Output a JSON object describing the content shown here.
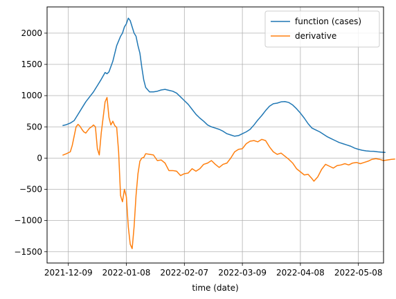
{
  "chart_data": {
    "type": "line",
    "title": "",
    "xlabel": "time (date)",
    "ylabel": "",
    "grid": true,
    "legend_position": "top-right",
    "x_axis": {
      "kind": "date",
      "min": "2021-11-28",
      "max": "2022-05-21",
      "ticks": [
        "2021-12-09",
        "2022-01-08",
        "2022-02-07",
        "2022-03-09",
        "2022-04-08",
        "2022-05-08"
      ]
    },
    "y_axis": {
      "min": -1680,
      "max": 2420,
      "ticks": [
        -1500,
        -1000,
        -500,
        0,
        500,
        1000,
        1500,
        2000
      ]
    },
    "series": [
      {
        "name": "function (cases)",
        "color": "#1f77b4",
        "points": [
          [
            "2021-12-06",
            520
          ],
          [
            "2021-12-08",
            535
          ],
          [
            "2021-12-10",
            560
          ],
          [
            "2021-12-12",
            600
          ],
          [
            "2021-12-14",
            700
          ],
          [
            "2021-12-16",
            800
          ],
          [
            "2021-12-18",
            900
          ],
          [
            "2021-12-20",
            980
          ],
          [
            "2021-12-22",
            1060
          ],
          [
            "2021-12-24",
            1160
          ],
          [
            "2021-12-26",
            1260
          ],
          [
            "2021-12-28",
            1370
          ],
          [
            "2021-12-29",
            1350
          ],
          [
            "2021-12-30",
            1380
          ],
          [
            "2022-01-01",
            1550
          ],
          [
            "2022-01-03",
            1800
          ],
          [
            "2022-01-05",
            1950
          ],
          [
            "2022-01-06",
            2000
          ],
          [
            "2022-01-07",
            2100
          ],
          [
            "2022-01-08",
            2150
          ],
          [
            "2022-01-09",
            2240
          ],
          [
            "2022-01-10",
            2200
          ],
          [
            "2022-01-11",
            2100
          ],
          [
            "2022-01-12",
            2000
          ],
          [
            "2022-01-13",
            1950
          ],
          [
            "2022-01-14",
            1800
          ],
          [
            "2022-01-15",
            1680
          ],
          [
            "2022-01-16",
            1450
          ],
          [
            "2022-01-17",
            1250
          ],
          [
            "2022-01-18",
            1130
          ],
          [
            "2022-01-20",
            1060
          ],
          [
            "2022-01-22",
            1060
          ],
          [
            "2022-01-24",
            1070
          ],
          [
            "2022-01-26",
            1090
          ],
          [
            "2022-01-28",
            1100
          ],
          [
            "2022-01-30",
            1085
          ],
          [
            "2022-02-01",
            1070
          ],
          [
            "2022-02-03",
            1040
          ],
          [
            "2022-02-05",
            980
          ],
          [
            "2022-02-07",
            920
          ],
          [
            "2022-02-09",
            860
          ],
          [
            "2022-02-11",
            780
          ],
          [
            "2022-02-13",
            700
          ],
          [
            "2022-02-15",
            640
          ],
          [
            "2022-02-17",
            590
          ],
          [
            "2022-02-19",
            530
          ],
          [
            "2022-02-21",
            500
          ],
          [
            "2022-02-23",
            480
          ],
          [
            "2022-02-25",
            460
          ],
          [
            "2022-02-27",
            430
          ],
          [
            "2022-03-01",
            390
          ],
          [
            "2022-03-03",
            370
          ],
          [
            "2022-03-05",
            350
          ],
          [
            "2022-03-07",
            360
          ],
          [
            "2022-03-09",
            390
          ],
          [
            "2022-03-11",
            420
          ],
          [
            "2022-03-13",
            460
          ],
          [
            "2022-03-15",
            530
          ],
          [
            "2022-03-17",
            610
          ],
          [
            "2022-03-19",
            680
          ],
          [
            "2022-03-21",
            760
          ],
          [
            "2022-03-23",
            830
          ],
          [
            "2022-03-25",
            870
          ],
          [
            "2022-03-27",
            880
          ],
          [
            "2022-03-29",
            900
          ],
          [
            "2022-03-31",
            905
          ],
          [
            "2022-04-02",
            890
          ],
          [
            "2022-04-04",
            850
          ],
          [
            "2022-04-06",
            790
          ],
          [
            "2022-04-08",
            720
          ],
          [
            "2022-04-10",
            640
          ],
          [
            "2022-04-12",
            550
          ],
          [
            "2022-04-14",
            480
          ],
          [
            "2022-04-16",
            450
          ],
          [
            "2022-04-18",
            420
          ],
          [
            "2022-04-20",
            380
          ],
          [
            "2022-04-22",
            340
          ],
          [
            "2022-04-24",
            310
          ],
          [
            "2022-04-26",
            280
          ],
          [
            "2022-04-28",
            250
          ],
          [
            "2022-04-30",
            230
          ],
          [
            "2022-05-02",
            210
          ],
          [
            "2022-05-04",
            190
          ],
          [
            "2022-05-06",
            160
          ],
          [
            "2022-05-08",
            140
          ],
          [
            "2022-05-10",
            125
          ],
          [
            "2022-05-12",
            115
          ],
          [
            "2022-05-14",
            110
          ],
          [
            "2022-05-16",
            108
          ],
          [
            "2022-05-18",
            100
          ],
          [
            "2022-05-20",
            95
          ],
          [
            "2022-05-22",
            90
          ]
        ]
      },
      {
        "name": "derivative",
        "color": "#ff7f0e",
        "points": [
          [
            "2021-12-06",
            45
          ],
          [
            "2021-12-08",
            70
          ],
          [
            "2021-12-10",
            100
          ],
          [
            "2021-12-11",
            200
          ],
          [
            "2021-12-12",
            350
          ],
          [
            "2021-12-13",
            500
          ],
          [
            "2021-12-14",
            540
          ],
          [
            "2021-12-15",
            510
          ],
          [
            "2021-12-16",
            460
          ],
          [
            "2021-12-17",
            420
          ],
          [
            "2021-12-18",
            400
          ],
          [
            "2021-12-19",
            440
          ],
          [
            "2021-12-20",
            480
          ],
          [
            "2021-12-21",
            500
          ],
          [
            "2021-12-22",
            530
          ],
          [
            "2021-12-23",
            500
          ],
          [
            "2021-12-24",
            150
          ],
          [
            "2021-12-25",
            50
          ],
          [
            "2021-12-26",
            400
          ],
          [
            "2021-12-27",
            650
          ],
          [
            "2021-12-28",
            900
          ],
          [
            "2021-12-29",
            970
          ],
          [
            "2021-12-30",
            650
          ],
          [
            "2021-12-31",
            530
          ],
          [
            "2022-01-01",
            590
          ],
          [
            "2022-01-02",
            520
          ],
          [
            "2022-01-03",
            490
          ],
          [
            "2022-01-04",
            100
          ],
          [
            "2022-01-05",
            -600
          ],
          [
            "2022-01-06",
            -700
          ],
          [
            "2022-01-07",
            -500
          ],
          [
            "2022-01-08",
            -620
          ],
          [
            "2022-01-09",
            -1100
          ],
          [
            "2022-01-10",
            -1380
          ],
          [
            "2022-01-11",
            -1450
          ],
          [
            "2022-01-12",
            -1100
          ],
          [
            "2022-01-13",
            -600
          ],
          [
            "2022-01-14",
            -250
          ],
          [
            "2022-01-15",
            -50
          ],
          [
            "2022-01-16",
            0
          ],
          [
            "2022-01-17",
            10
          ],
          [
            "2022-01-18",
            70
          ],
          [
            "2022-01-20",
            60
          ],
          [
            "2022-01-22",
            50
          ],
          [
            "2022-01-24",
            -40
          ],
          [
            "2022-01-26",
            -30
          ],
          [
            "2022-01-28",
            -80
          ],
          [
            "2022-01-30",
            -200
          ],
          [
            "2022-02-01",
            -200
          ],
          [
            "2022-02-03",
            -210
          ],
          [
            "2022-02-05",
            -280
          ],
          [
            "2022-02-07",
            -250
          ],
          [
            "2022-02-09",
            -240
          ],
          [
            "2022-02-11",
            -170
          ],
          [
            "2022-02-13",
            -210
          ],
          [
            "2022-02-15",
            -170
          ],
          [
            "2022-02-17",
            -100
          ],
          [
            "2022-02-19",
            -80
          ],
          [
            "2022-02-21",
            -40
          ],
          [
            "2022-02-23",
            -100
          ],
          [
            "2022-02-25",
            -150
          ],
          [
            "2022-02-27",
            -100
          ],
          [
            "2022-03-01",
            -80
          ],
          [
            "2022-03-03",
            0
          ],
          [
            "2022-03-05",
            100
          ],
          [
            "2022-03-07",
            140
          ],
          [
            "2022-03-09",
            150
          ],
          [
            "2022-03-11",
            230
          ],
          [
            "2022-03-13",
            270
          ],
          [
            "2022-03-15",
            280
          ],
          [
            "2022-03-17",
            260
          ],
          [
            "2022-03-19",
            300
          ],
          [
            "2022-03-21",
            280
          ],
          [
            "2022-03-23",
            180
          ],
          [
            "2022-03-25",
            100
          ],
          [
            "2022-03-27",
            60
          ],
          [
            "2022-03-29",
            80
          ],
          [
            "2022-03-31",
            30
          ],
          [
            "2022-04-02",
            -20
          ],
          [
            "2022-04-04",
            -80
          ],
          [
            "2022-04-06",
            -170
          ],
          [
            "2022-04-08",
            -220
          ],
          [
            "2022-04-10",
            -270
          ],
          [
            "2022-04-12",
            -260
          ],
          [
            "2022-04-14",
            -330
          ],
          [
            "2022-04-15",
            -370
          ],
          [
            "2022-04-17",
            -300
          ],
          [
            "2022-04-19",
            -180
          ],
          [
            "2022-04-21",
            -100
          ],
          [
            "2022-04-23",
            -130
          ],
          [
            "2022-04-25",
            -160
          ],
          [
            "2022-04-27",
            -120
          ],
          [
            "2022-04-29",
            -110
          ],
          [
            "2022-05-01",
            -90
          ],
          [
            "2022-05-03",
            -110
          ],
          [
            "2022-05-05",
            -80
          ],
          [
            "2022-05-07",
            -70
          ],
          [
            "2022-05-09",
            -90
          ],
          [
            "2022-05-11",
            -70
          ],
          [
            "2022-05-13",
            -50
          ],
          [
            "2022-05-15",
            -20
          ],
          [
            "2022-05-17",
            -10
          ],
          [
            "2022-05-19",
            -20
          ],
          [
            "2022-05-21",
            -40
          ],
          [
            "2022-05-23",
            -30
          ],
          [
            "2022-05-25",
            -20
          ],
          [
            "2022-05-27",
            -15
          ]
        ]
      }
    ]
  }
}
